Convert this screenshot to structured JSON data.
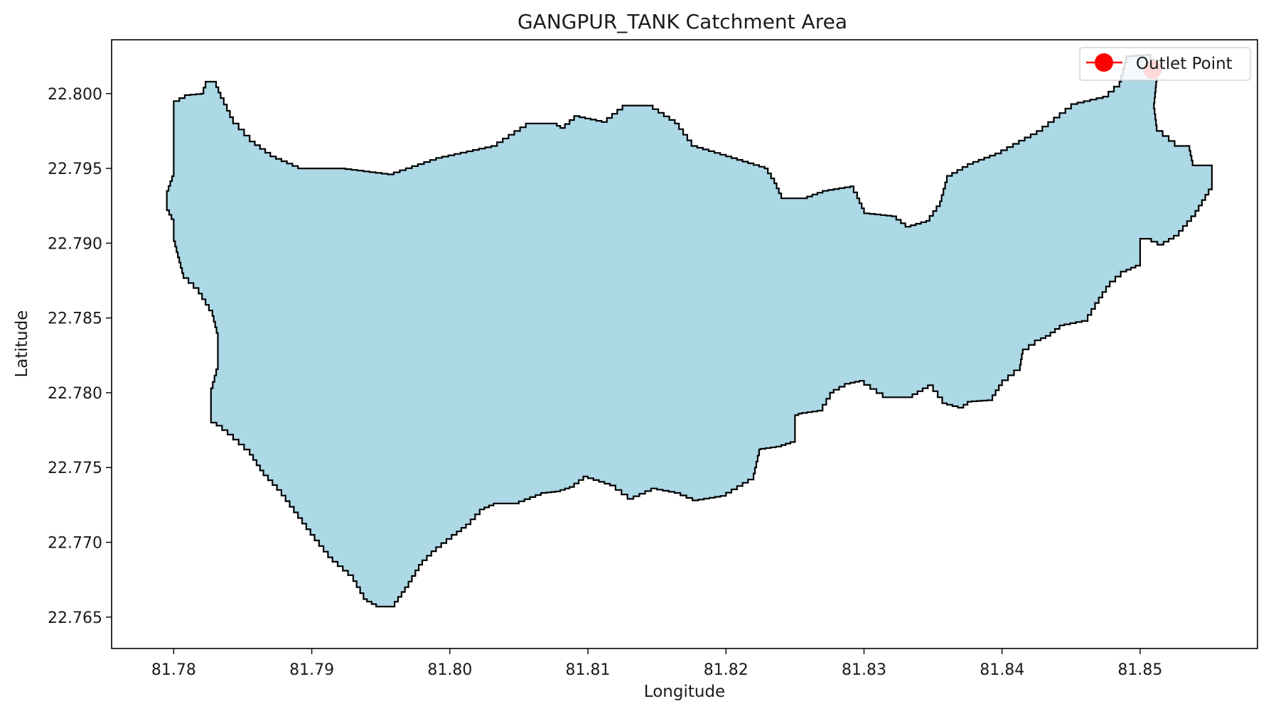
{
  "chart_data": {
    "type": "map",
    "title": "GANGPUR_TANK Catchment Area",
    "xlabel": "Longitude",
    "ylabel": "Latitude",
    "xlim": [
      81.7755,
      81.8585
    ],
    "ylim": [
      22.7629,
      22.8036
    ],
    "xticks": [
      81.78,
      81.79,
      81.8,
      81.81,
      81.82,
      81.83,
      81.84,
      81.85
    ],
    "xtick_labels": [
      "81.78",
      "81.79",
      "81.80",
      "81.81",
      "81.82",
      "81.83",
      "81.84",
      "81.85"
    ],
    "yticks": [
      22.765,
      22.77,
      22.775,
      22.78,
      22.785,
      22.79,
      22.795,
      22.8
    ],
    "ytick_labels": [
      "22.765",
      "22.770",
      "22.775",
      "22.780",
      "22.785",
      "22.790",
      "22.795",
      "22.800"
    ],
    "grid": false,
    "legend": {
      "placement": "top-right",
      "entries": [
        {
          "label": "Outlet Point",
          "color": "#ff0000",
          "marker": "circle-line"
        }
      ]
    },
    "catchment": {
      "fill_color": "#add8e6",
      "edge_color": "#000000",
      "boundary": [
        [
          81.78,
          22.7995
        ],
        [
          81.7808,
          22.7999
        ],
        [
          81.782,
          22.8
        ],
        [
          81.7823,
          22.8008
        ],
        [
          81.7829,
          22.8008
        ],
        [
          81.7834,
          22.7997
        ],
        [
          81.7843,
          22.798
        ],
        [
          81.7855,
          22.7968
        ],
        [
          81.787,
          22.7958
        ],
        [
          81.789,
          22.795
        ],
        [
          81.792,
          22.795
        ],
        [
          81.7955,
          22.7946
        ],
        [
          81.799,
          22.7957
        ],
        [
          81.803,
          22.7965
        ],
        [
          81.8055,
          22.798
        ],
        [
          81.8075,
          22.798
        ],
        [
          81.808,
          22.7977
        ],
        [
          81.809,
          22.7985
        ],
        [
          81.811,
          22.7981
        ],
        [
          81.8125,
          22.7992
        ],
        [
          81.8143,
          22.7992
        ],
        [
          81.8163,
          22.798
        ],
        [
          81.8175,
          22.7965
        ],
        [
          81.82,
          22.7958
        ],
        [
          81.8228,
          22.795
        ],
        [
          81.8235,
          22.794
        ],
        [
          81.824,
          22.793
        ],
        [
          81.8255,
          22.793
        ],
        [
          81.827,
          22.7935
        ],
        [
          81.829,
          22.7938
        ],
        [
          81.8295,
          22.793
        ],
        [
          81.83,
          22.792
        ],
        [
          81.832,
          22.7918
        ],
        [
          81.833,
          22.7911
        ],
        [
          81.8345,
          22.7915
        ],
        [
          81.8355,
          22.7928
        ],
        [
          81.836,
          22.7945
        ],
        [
          81.8375,
          22.7953
        ],
        [
          81.8395,
          22.796
        ],
        [
          81.8425,
          22.7975
        ],
        [
          81.845,
          22.7993
        ],
        [
          81.8473,
          22.7998
        ],
        [
          81.8485,
          22.8008
        ],
        [
          81.849,
          22.8025
        ],
        [
          81.8505,
          22.8026
        ],
        [
          81.851,
          22.802
        ],
        [
          81.8512,
          22.8008
        ],
        [
          81.851,
          22.799
        ],
        [
          81.8512,
          22.7975
        ],
        [
          81.8525,
          22.7965
        ],
        [
          81.8535,
          22.7965
        ],
        [
          81.8538,
          22.7952
        ],
        [
          81.8552,
          22.7952
        ],
        [
          81.8552,
          22.7936
        ],
        [
          81.854,
          22.7918
        ],
        [
          81.8528,
          22.7905
        ],
        [
          81.8517,
          22.7899
        ],
        [
          81.8508,
          22.7903
        ],
        [
          81.85,
          22.7903
        ],
        [
          81.85,
          22.7885
        ],
        [
          81.849,
          22.7881
        ],
        [
          81.8478,
          22.7871
        ],
        [
          81.847,
          22.786
        ],
        [
          81.8462,
          22.7848
        ],
        [
          81.8445,
          22.7845
        ],
        [
          81.8435,
          22.7838
        ],
        [
          81.8428,
          22.7835
        ],
        [
          81.8415,
          22.7826
        ],
        [
          81.8413,
          22.7815
        ],
        [
          81.84,
          22.7805
        ],
        [
          81.8393,
          22.7795
        ],
        [
          81.8378,
          22.7794
        ],
        [
          81.8372,
          22.779
        ],
        [
          81.836,
          22.7793
        ],
        [
          81.835,
          22.7805
        ],
        [
          81.8335,
          22.7797
        ],
        [
          81.8318,
          22.7797
        ],
        [
          81.83,
          22.7808
        ],
        [
          81.829,
          22.7806
        ],
        [
          81.8278,
          22.78
        ],
        [
          81.827,
          22.7788
        ],
        [
          81.8255,
          22.7786
        ],
        [
          81.825,
          22.7784
        ],
        [
          81.825,
          22.7767
        ],
        [
          81.824,
          22.7764
        ],
        [
          81.8225,
          22.7762
        ],
        [
          81.822,
          22.7742
        ],
        [
          81.82,
          22.7731
        ],
        [
          81.818,
          22.7728
        ],
        [
          81.8167,
          22.7733
        ],
        [
          81.815,
          22.7736
        ],
        [
          81.8133,
          22.7729
        ],
        [
          81.812,
          22.7738
        ],
        [
          81.81,
          22.7744
        ],
        [
          81.809,
          22.7737
        ],
        [
          81.808,
          22.7734
        ],
        [
          81.807,
          22.7733
        ],
        [
          81.805,
          22.7726
        ],
        [
          81.8035,
          22.7726
        ],
        [
          81.8025,
          22.7722
        ],
        [
          81.8015,
          22.7712
        ],
        [
          81.8005,
          22.7705
        ],
        [
          81.799,
          22.7694
        ],
        [
          81.798,
          22.7685
        ],
        [
          81.797,
          22.767
        ],
        [
          81.796,
          22.7657
        ],
        [
          81.795,
          22.7657
        ],
        [
          81.794,
          22.7662
        ],
        [
          81.793,
          22.7678
        ],
        [
          81.7915,
          22.769
        ],
        [
          81.7902,
          22.7705
        ],
        [
          81.789,
          22.772
        ],
        [
          81.7878,
          22.7735
        ],
        [
          81.7865,
          22.7748
        ],
        [
          81.7855,
          22.7762
        ],
        [
          81.7843,
          22.7772
        ],
        [
          81.7835,
          22.7778
        ],
        [
          81.7827,
          22.7782
        ],
        [
          81.7827,
          22.7803
        ],
        [
          81.7832,
          22.782
        ],
        [
          81.7832,
          22.784
        ],
        [
          81.7828,
          22.7855
        ],
        [
          81.7818,
          22.787
        ],
        [
          81.7807,
          22.788
        ],
        [
          81.7803,
          22.7894
        ],
        [
          81.78,
          22.7905
        ],
        [
          81.78,
          22.7916
        ],
        [
          81.7795,
          22.7925
        ],
        [
          81.7795,
          22.7935
        ],
        [
          81.78,
          22.7948
        ],
        [
          81.78,
          22.7965
        ],
        [
          81.78,
          22.7995
        ]
      ]
    },
    "outlet_point": {
      "label": "Outlet Point",
      "lon": 81.8509,
      "lat": 22.8016,
      "color": "#ff0000"
    }
  }
}
